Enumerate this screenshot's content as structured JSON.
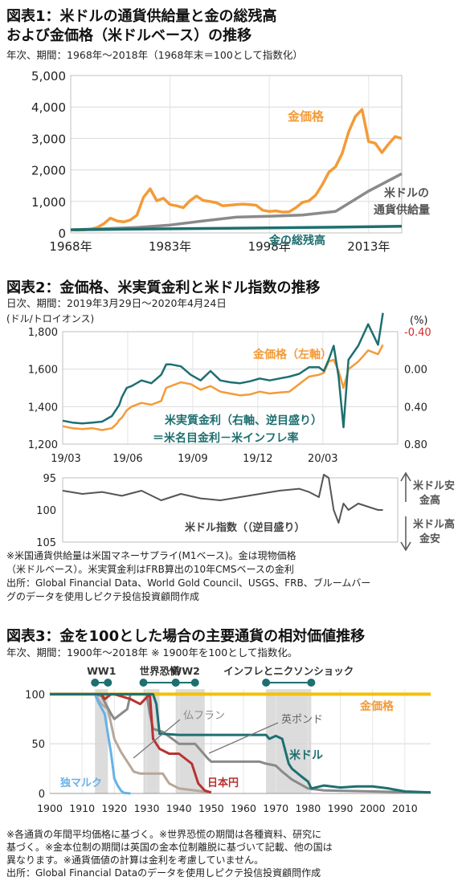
{
  "chart_data": [
    {
      "type": "line",
      "title_line1": "図表1：米ドルの通貨供給量と金の総残高",
      "title_line2": "および金価格（米ドルベース）の推移",
      "subtitle": "年次、期間：1968年～2018年（1968年末＝100として指数化）",
      "ylim": [
        0,
        5000
      ],
      "xlim": [
        1968,
        2018
      ],
      "yticks": [
        0,
        1000,
        2000,
        3000,
        4000,
        5000
      ],
      "ytick_labels": [
        "0",
        "1,000",
        "2,000",
        "3,000",
        "4,000",
        "5,000"
      ],
      "xticks": [
        1968,
        1983,
        1998,
        2013
      ],
      "xtick_labels": [
        "1968年",
        "1983年",
        "1998年",
        "2013年"
      ],
      "grid": true,
      "colors": {
        "gold": "#f39b38",
        "money": "#8a8a8a",
        "stock": "#1e6f70"
      },
      "series": [
        {
          "key": "gold",
          "name": "金価格",
          "x": [
            1968,
            1969,
            1970,
            1971,
            1972,
            1973,
            1974,
            1975,
            1976,
            1977,
            1978,
            1979,
            1980,
            1981,
            1982,
            1983,
            1984,
            1985,
            1986,
            1987,
            1988,
            1989,
            1990,
            1991,
            1992,
            1993,
            1994,
            1995,
            1996,
            1997,
            1998,
            1999,
            2000,
            2001,
            2002,
            2003,
            2004,
            2005,
            2006,
            2007,
            2008,
            2009,
            2010,
            2011,
            2012,
            2013,
            2014,
            2015,
            2016,
            2017,
            2018
          ],
          "values": [
            100,
            90,
            96,
            120,
            170,
            290,
            470,
            380,
            350,
            410,
            560,
            1130,
            1400,
            1020,
            1100,
            900,
            860,
            800,
            1020,
            1170,
            1030,
            1000,
            960,
            860,
            880,
            900,
            910,
            900,
            880,
            720,
            680,
            700,
            660,
            670,
            800,
            970,
            1020,
            1200,
            1530,
            1930,
            2100,
            2520,
            3220,
            3700,
            3920,
            2900,
            2850,
            2550,
            2820,
            3060,
            3000
          ]
        },
        {
          "key": "money",
          "name": "米ドルの\n通貨供給量",
          "x": [
            1968,
            1973,
            1978,
            1983,
            1988,
            1993,
            1998,
            2003,
            2008,
            2013,
            2018
          ],
          "values": [
            100,
            130,
            170,
            250,
            380,
            500,
            530,
            570,
            680,
            1330,
            1880
          ]
        },
        {
          "key": "stock",
          "name": "金の総残高",
          "x": [
            1968,
            1978,
            1988,
            1998,
            2008,
            2018
          ],
          "values": [
            100,
            120,
            140,
            160,
            180,
            210
          ]
        }
      ],
      "labels": {
        "gold": "金価格",
        "money_line1": "米ドルの",
        "money_line2": "通貨供給量",
        "stock": "金の総残高"
      }
    },
    {
      "type": "line",
      "title": "図表2：金価格、米実質金利と米ドル指数の推移",
      "subtitle": "日次、期間：2019年3月29日～2020年4月24日",
      "ylabel_left": "(ドル/トロイオンス)",
      "ylabel_right": "(%)",
      "ylim_left": [
        1200,
        1800
      ],
      "yticks_left": [
        "1,200",
        "1,400",
        "1,600",
        "1,800"
      ],
      "ylim_right": [
        0.8,
        -0.4
      ],
      "yticks_right": [
        "-0.40",
        "0.00",
        "0.40",
        "0.80"
      ],
      "xticks": [
        "19/03",
        "19/06",
        "19/09",
        "19/12",
        "20/03"
      ],
      "grid": true,
      "colors": {
        "gold": "#f39b38",
        "real_rate": "#1e6f70",
        "dollar": "#555555",
        "red_tick": "#d42a2a"
      },
      "series": [
        {
          "key": "gold",
          "name": "金価格（左軸）",
          "x": [
            0,
            2,
            4,
            6,
            8,
            10,
            11,
            11.5,
            12,
            13,
            14,
            16,
            18,
            20,
            21,
            22,
            24,
            26,
            28,
            30,
            32,
            34,
            36,
            38,
            40,
            42,
            44,
            46,
            48,
            50,
            52,
            53,
            54,
            55,
            56,
            57,
            58,
            60,
            62,
            64,
            65
          ],
          "values": [
            1295,
            1285,
            1280,
            1285,
            1275,
            1285,
            1310,
            1330,
            1340,
            1380,
            1400,
            1420,
            1410,
            1430,
            1500,
            1510,
            1530,
            1520,
            1490,
            1510,
            1480,
            1470,
            1460,
            1465,
            1480,
            1470,
            1475,
            1480,
            1520,
            1560,
            1570,
            1580,
            1640,
            1650,
            1590,
            1500,
            1600,
            1640,
            1700,
            1680,
            1730
          ]
        },
        {
          "key": "real_rate",
          "name": "米実質金利（右軸、逆目盛り）",
          "x": [
            0,
            2,
            4,
            6,
            8,
            10,
            11,
            11.5,
            12,
            13,
            14,
            16,
            18,
            20,
            21,
            22,
            24,
            26,
            28,
            30,
            32,
            34,
            36,
            38,
            40,
            42,
            44,
            46,
            48,
            50,
            52,
            53,
            54,
            55,
            56,
            57,
            58,
            60,
            62,
            64,
            65
          ],
          "values": [
            0.55,
            0.57,
            0.58,
            0.57,
            0.56,
            0.5,
            0.42,
            0.38,
            0.3,
            0.2,
            0.18,
            0.12,
            0.15,
            0.06,
            -0.05,
            -0.05,
            -0.03,
            0.06,
            0.12,
            0.02,
            0.12,
            0.14,
            0.15,
            0.13,
            0.1,
            0.12,
            0.1,
            0.08,
            0.05,
            -0.02,
            -0.02,
            0.02,
            -0.1,
            -0.25,
            0.08,
            0.62,
            -0.1,
            -0.25,
            -0.48,
            -0.26,
            -0.6
          ]
        },
        {
          "key": "dollar",
          "name": "米ドル指数（（逆目盛り）",
          "x": [
            0,
            4,
            8,
            12,
            16,
            20,
            24,
            28,
            32,
            36,
            40,
            44,
            48,
            50,
            52,
            53,
            54,
            55,
            56,
            57,
            58,
            60,
            62,
            64,
            65
          ],
          "values": [
            97,
            97.5,
            97.2,
            97.8,
            97,
            98.5,
            97.5,
            98.2,
            98.5,
            98,
            97.5,
            97,
            96.7,
            97.2,
            98,
            94.5,
            95,
            100,
            102,
            99,
            100,
            99,
            99.5,
            100,
            100
          ]
        }
      ],
      "labels": {
        "gold": "金価格（左軸）",
        "rate_line1": "米実質金利（右軸、逆目盛り）",
        "rate_line2": "＝米名目金利－米インフレ率",
        "dollar": "米ドル指数（（逆目盛り）"
      },
      "lower_ylim": [
        95,
        105
      ],
      "lower_yticks": [
        "95",
        "100",
        "105"
      ],
      "lower_annotations": {
        "up_line1": "米ドル安",
        "up_line2": "金高",
        "down_line1": "米ドル高",
        "down_line2": "金安"
      }
    },
    {
      "type": "line",
      "title": "図表3：金を100とした場合の主要通貨の相対価値推移",
      "subtitle": "年次、期間：1900年～2018年 ※ 1900年を100として指数化。",
      "xlim": [
        1900,
        2018
      ],
      "ylim": [
        0,
        110
      ],
      "xticks": [
        "1900",
        "1910",
        "1920",
        "1930",
        "1940",
        "1950",
        "1960",
        "1970",
        "1980",
        "1990",
        "2000",
        "2010"
      ],
      "yticks": [
        "0",
        "50",
        "100"
      ],
      "grid": true,
      "colors": {
        "gold": "#f5c000",
        "usd": "#1e6f70",
        "gbp": "#8a8a8a",
        "frf": "#b7a79a",
        "jpy": "#b83232",
        "dem": "#66b2e8",
        "band": "#dcdcdc"
      },
      "periods": [
        {
          "name": "WW1",
          "start": 1914,
          "end": 1918
        },
        {
          "name": "世界恐慌",
          "start": 1929,
          "end": 1939
        },
        {
          "name": "WW2",
          "start": 1939,
          "end": 1945
        },
        {
          "name": "インフレとニクソンショック",
          "start": 1967,
          "end": 1981
        }
      ],
      "bands": [
        [
          1914,
          1918
        ],
        [
          1929,
          1934
        ],
        [
          1939,
          1948
        ],
        [
          1967,
          1981
        ]
      ],
      "series": [
        {
          "key": "gold",
          "name": "金価格",
          "x": [
            1900,
            2018
          ],
          "values": [
            100,
            100
          ]
        },
        {
          "key": "usd",
          "name": "米ドル",
          "x": [
            1900,
            1915,
            1920,
            1925,
            1932,
            1933,
            1934,
            1935,
            1940,
            1945,
            1950,
            1955,
            1960,
            1965,
            1967,
            1968,
            1970,
            1972,
            1974,
            1975,
            1978,
            1980,
            1981,
            1985,
            1990,
            1995,
            2000,
            2005,
            2010,
            2018
          ],
          "values": [
            100,
            100,
            100,
            100,
            100,
            90,
            60,
            60,
            59,
            59,
            59,
            59,
            59,
            59,
            59,
            55,
            58,
            55,
            30,
            25,
            17,
            12,
            5,
            8,
            6,
            7,
            7,
            5,
            2,
            1
          ]
        },
        {
          "key": "gbp",
          "name": "英ポンド",
          "x": [
            1900,
            1914,
            1916,
            1919,
            1920,
            1924,
            1925,
            1930,
            1931,
            1932,
            1935,
            1940,
            1945,
            1949,
            1950,
            1955,
            1960,
            1965,
            1967,
            1970,
            1972,
            1975,
            1980,
            1985,
            2000,
            2018
          ],
          "values": [
            100,
            100,
            98,
            80,
            75,
            85,
            100,
            100,
            80,
            65,
            62,
            50,
            50,
            35,
            32,
            32,
            32,
            32,
            30,
            28,
            22,
            14,
            5,
            3,
            2,
            1
          ]
        },
        {
          "key": "frf",
          "name": "仏フラン",
          "x": [
            1900,
            1914,
            1916,
            1918,
            1920,
            1922,
            1926,
            1928,
            1930,
            1935,
            1936,
            1937,
            1940,
            1950
          ],
          "values": [
            100,
            100,
            90,
            85,
            55,
            42,
            22,
            20,
            20,
            20,
            15,
            10,
            5,
            1
          ]
        },
        {
          "key": "jpy",
          "name": "日本円",
          "x": [
            1900,
            1916,
            1917,
            1919,
            1920,
            1925,
            1928,
            1931,
            1932,
            1934,
            1937,
            1940,
            1944,
            1946,
            1948,
            1950
          ],
          "values": [
            100,
            100,
            95,
            100,
            100,
            95,
            90,
            100,
            55,
            45,
            40,
            40,
            30,
            10,
            3,
            1
          ]
        },
        {
          "key": "dem",
          "name": "独マルク",
          "x": [
            1900,
            1914,
            1915,
            1917,
            1919,
            1920,
            1921,
            1922,
            1923,
            1925
          ],
          "values": [
            100,
            100,
            92,
            80,
            40,
            15,
            8,
            3,
            0.5,
            0
          ]
        }
      ],
      "labels": {
        "gold": "金価格",
        "usd": "米ドル",
        "gbp": "英ポンド",
        "frf": "仏フラン",
        "jpy": "日本円",
        "dem": "独マルク"
      }
    }
  ],
  "notes2": [
    "※米国通貨供給量は米国マネーサプライ(M1ベース)。金は現物価格",
    "（米ドルベース）。米実質金利はFRB算出の10年CMSベースの金利",
    "出所：Global Financial Data、World Gold Council、USGS、FRB、ブルームバー",
    "グのデータを使用しピクテ投信投資顧問作成"
  ],
  "notes3": [
    "※各通貨の年間平均価格に基づく。※世界恐慌の期間は各種資料、研究に",
    "基づく。※金本位制の期間は英国の金本位制離脱に基づいて記載、他の国は",
    "異なります。※通貨価値の計算は金利を考慮していません。",
    "出所：Global Financial Dataのデータを使用しピクテ投信投資顧問作成"
  ]
}
